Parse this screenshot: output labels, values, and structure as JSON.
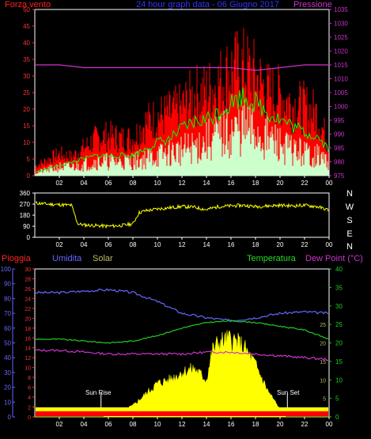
{
  "header": {
    "left_label": "Forza vento",
    "title": "24 hour graph data - 06 Giugno 2017",
    "right_label": "Pressione"
  },
  "direction_axis": {
    "labels": [
      "N",
      "W",
      "S",
      "E",
      "N"
    ]
  },
  "bottom_header": {
    "pioggia": "Pioggia",
    "umidita": "Umidita",
    "solar": "Solar",
    "temperatura": "Temperatura",
    "dew_point": "Dew Point (°C)"
  },
  "annotations": {
    "sunrise": "Sun Rise",
    "sunset": "Sun Set"
  },
  "colors": {
    "wind_gust": "#ff0000",
    "wind_avg": "#00ff00",
    "wind_speed": "#ccffcc",
    "pressure": "#cc33cc",
    "direction": "#ffff00",
    "humidity": "#6666ff",
    "temperature": "#22cc22",
    "dewpoint": "#cc33cc",
    "solar": "#ffff00",
    "rain": "#ff0000",
    "frame": "#ffffff",
    "grid": "#444444"
  },
  "chart_data": [
    {
      "type": "line",
      "title": "24 hour graph data - 06 Giugno 2017",
      "x_ticks": [
        "02",
        "04",
        "06",
        "08",
        "10",
        "12",
        "14",
        "16",
        "18",
        "20",
        "22",
        "00"
      ],
      "y_left": {
        "label": "Forza vento",
        "ticks": [
          0,
          5,
          10,
          15,
          20,
          25,
          30,
          35,
          40,
          45,
          50
        ],
        "range": [
          0,
          50
        ]
      },
      "y_right": {
        "label": "Pressione",
        "ticks": [
          975,
          980,
          985,
          990,
          995,
          1000,
          1005,
          1010,
          1015,
          1020,
          1025,
          1030,
          1035
        ],
        "range": [
          975,
          1035
        ]
      },
      "series": [
        {
          "key": "gust",
          "axis": "left",
          "x": [
            0,
            1,
            2,
            3,
            4,
            5,
            6,
            7,
            8,
            9,
            10,
            11,
            12,
            13,
            14,
            15,
            16,
            17,
            18,
            19,
            20,
            21,
            22,
            23,
            24
          ],
          "values": [
            3,
            5,
            7,
            6,
            9,
            12,
            13,
            12,
            12,
            17,
            19,
            20,
            22,
            26,
            27,
            30,
            34,
            35,
            32,
            27,
            26,
            23,
            22,
            20,
            10
          ]
        },
        {
          "key": "avg",
          "axis": "left",
          "x": [
            0,
            1,
            2,
            3,
            4,
            5,
            6,
            7,
            8,
            9,
            10,
            11,
            12,
            13,
            14,
            15,
            16,
            17,
            18,
            19,
            20,
            21,
            22,
            23,
            24
          ],
          "values": [
            1,
            2,
            3,
            4,
            5,
            6,
            6,
            6,
            6,
            8,
            10,
            11,
            14,
            16,
            17,
            19,
            22,
            24,
            22,
            19,
            17,
            15,
            13,
            12,
            8
          ]
        },
        {
          "key": "speed",
          "axis": "left",
          "x": [
            0,
            1,
            2,
            3,
            4,
            5,
            6,
            7,
            8,
            9,
            10,
            11,
            12,
            13,
            14,
            15,
            16,
            17,
            18,
            19,
            20,
            21,
            22,
            23,
            24
          ],
          "values": [
            1,
            2,
            3,
            3,
            4,
            5,
            5,
            5,
            5,
            6,
            7,
            8,
            9,
            10,
            12,
            14,
            15,
            17,
            15,
            13,
            11,
            9,
            8,
            7,
            5
          ]
        },
        {
          "key": "pressure",
          "axis": "right",
          "x": [
            0,
            2,
            4,
            6,
            8,
            10,
            12,
            14,
            16,
            18,
            20,
            22,
            24
          ],
          "values": [
            1015,
            1015,
            1014,
            1014,
            1014,
            1014,
            1014,
            1014,
            1014,
            1013,
            1014,
            1015,
            1015
          ]
        }
      ]
    },
    {
      "type": "line",
      "title": "",
      "x_ticks": [
        "02",
        "04",
        "06",
        "08",
        "10",
        "12",
        "14",
        "16",
        "18",
        "20",
        "22",
        "00"
      ],
      "y_left": {
        "label": "",
        "ticks": [
          0,
          90,
          180,
          270,
          360
        ],
        "range": [
          0,
          360
        ]
      },
      "series": [
        {
          "key": "direction",
          "x": [
            0,
            1,
            2,
            3,
            3.5,
            4,
            5,
            6,
            7,
            8,
            8.5,
            9,
            10,
            11,
            12,
            13,
            14,
            15,
            16,
            17,
            18,
            19,
            20,
            21,
            22,
            23,
            24
          ],
          "values": [
            280,
            270,
            265,
            260,
            110,
            100,
            95,
            90,
            95,
            110,
            200,
            215,
            230,
            240,
            250,
            245,
            225,
            250,
            255,
            260,
            250,
            255,
            260,
            255,
            260,
            250,
            220
          ]
        }
      ]
    },
    {
      "type": "area",
      "title": "",
      "x_ticks": [
        "02",
        "04",
        "06",
        "08",
        "10",
        "12",
        "14",
        "16",
        "18",
        "20",
        "22",
        "00"
      ],
      "y_left_outer": {
        "label": "Umidita",
        "ticks": [
          0,
          10,
          20,
          30,
          40,
          50,
          60,
          70,
          80,
          90,
          100
        ],
        "range": [
          0,
          100
        ]
      },
      "y_left_inner": {
        "label": "Pioggia",
        "ticks": [
          0,
          2,
          4,
          6,
          8,
          10,
          12,
          14,
          16,
          18,
          20,
          22,
          24,
          26,
          28,
          30
        ],
        "range": [
          0,
          30
        ]
      },
      "y_right": {
        "label": "Temperatura / Dew Point (°C)",
        "ticks": [
          0,
          5,
          10,
          15,
          20,
          25,
          30,
          35,
          40
        ],
        "range": [
          0,
          40
        ]
      },
      "series": [
        {
          "key": "humidity",
          "axis": "outer",
          "x": [
            0,
            2,
            4,
            6,
            8,
            10,
            12,
            14,
            16,
            18,
            20,
            22,
            24
          ],
          "values": [
            84,
            84,
            85,
            86,
            84,
            78,
            70,
            67,
            65,
            67,
            70,
            71,
            70
          ]
        },
        {
          "key": "temperature",
          "axis": "right",
          "x": [
            0,
            2,
            4,
            6,
            8,
            10,
            12,
            14,
            16,
            18,
            20,
            22,
            24
          ],
          "values": [
            21,
            21,
            20.5,
            20,
            20.5,
            22,
            24,
            25.5,
            26,
            25.5,
            24.5,
            23.5,
            21
          ]
        },
        {
          "key": "dewpoint",
          "axis": "right",
          "x": [
            0,
            2,
            4,
            6,
            8,
            10,
            12,
            14,
            16,
            18,
            20,
            22,
            24
          ],
          "values": [
            18,
            18,
            17.5,
            17,
            17,
            17,
            17,
            17.5,
            17.5,
            17,
            16.5,
            16,
            15.5
          ]
        },
        {
          "key": "solar",
          "axis": "right",
          "x": [
            0,
            5.5,
            6,
            7,
            8,
            9,
            10,
            11,
            12,
            13,
            14,
            14.5,
            15,
            16,
            17,
            18,
            19,
            20,
            20.5,
            24
          ],
          "values": [
            0,
            0,
            0.5,
            1.5,
            3,
            6,
            9,
            10,
            12,
            13,
            10,
            18,
            20,
            21,
            19,
            14,
            7,
            2,
            0,
            0
          ]
        },
        {
          "key": "rain",
          "axis": "inner",
          "x": [
            0,
            24
          ],
          "values": [
            0,
            0
          ]
        }
      ]
    }
  ]
}
